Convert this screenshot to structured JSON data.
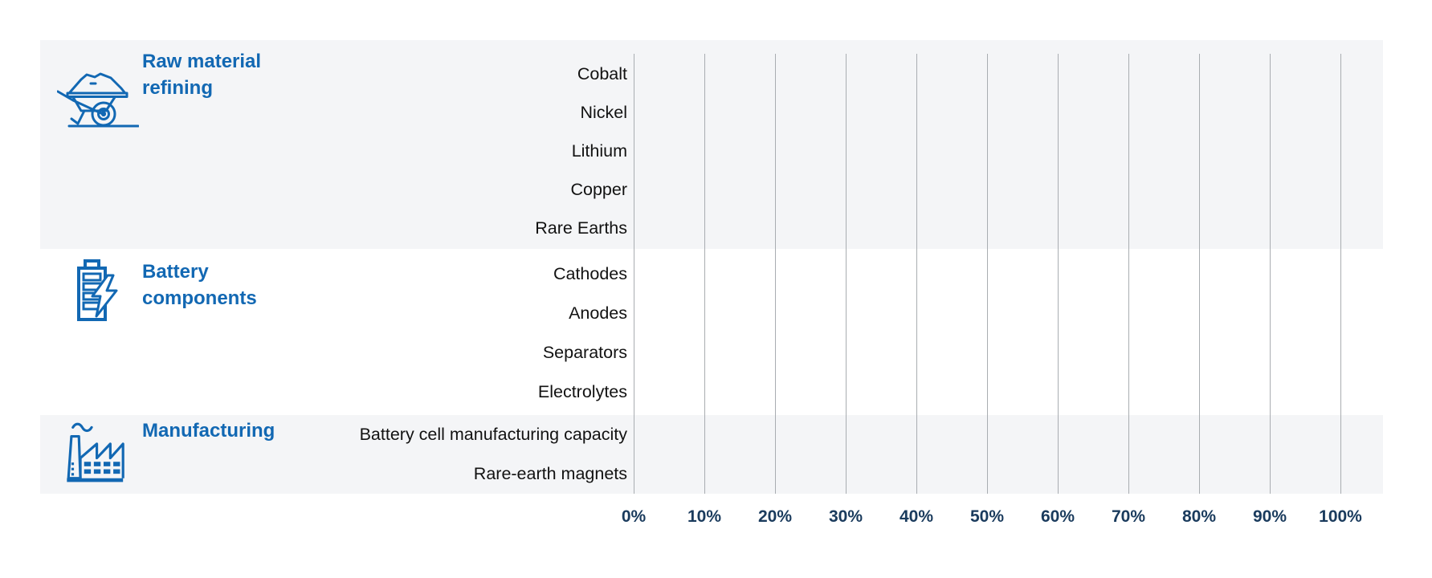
{
  "chart": {
    "colors": {
      "accent_blue": "#1268b3",
      "axis_label": "#1a3b5d",
      "band_background": "#f4f5f7",
      "gridline": "#a9adb1",
      "row_label": "#121212"
    },
    "groups": [
      {
        "label": "Raw material refining",
        "icon": "wheelbarrow-icon",
        "rows": [
          "Cobalt",
          "Nickel",
          "Lithium",
          "Copper",
          "Rare Earths"
        ]
      },
      {
        "label": "Battery components",
        "icon": "battery-icon",
        "rows": [
          "Cathodes",
          "Anodes",
          "Separators",
          "Electrolytes"
        ]
      },
      {
        "label": "Manufacturing",
        "icon": "factory-icon",
        "rows": [
          "Battery cell manufacturing capacity",
          "Rare-earth magnets"
        ]
      }
    ],
    "x_axis": {
      "tick_labels": [
        "0%",
        "10%",
        "20%",
        "30%",
        "40%",
        "50%",
        "60%",
        "70%",
        "80%",
        "90%",
        "100%"
      ],
      "min": 0,
      "max": 100,
      "unit": "%"
    }
  },
  "chart_data": {
    "type": "bar",
    "orientation": "horizontal",
    "title": "",
    "xlabel": "",
    "ylabel": "",
    "xlim": [
      0,
      100
    ],
    "x_tick_labels": [
      "0%",
      "10%",
      "20%",
      "30%",
      "40%",
      "50%",
      "60%",
      "70%",
      "80%",
      "90%",
      "100%"
    ],
    "grid": "vertical-gridlines-on",
    "legend": "none",
    "groups": [
      {
        "group": "Raw material refining",
        "categories": [
          "Cobalt",
          "Nickel",
          "Lithium",
          "Copper",
          "Rare Earths"
        ]
      },
      {
        "group": "Battery components",
        "categories": [
          "Cathodes",
          "Anodes",
          "Separators",
          "Electrolytes"
        ]
      },
      {
        "group": "Manufacturing",
        "categories": [
          "Battery cell manufacturing capacity",
          "Rare-earth magnets"
        ]
      }
    ],
    "categories": [
      "Cobalt",
      "Nickel",
      "Lithium",
      "Copper",
      "Rare Earths",
      "Cathodes",
      "Anodes",
      "Separators",
      "Electrolytes",
      "Battery cell manufacturing capacity",
      "Rare-earth magnets"
    ],
    "values_shown": false,
    "series": []
  }
}
